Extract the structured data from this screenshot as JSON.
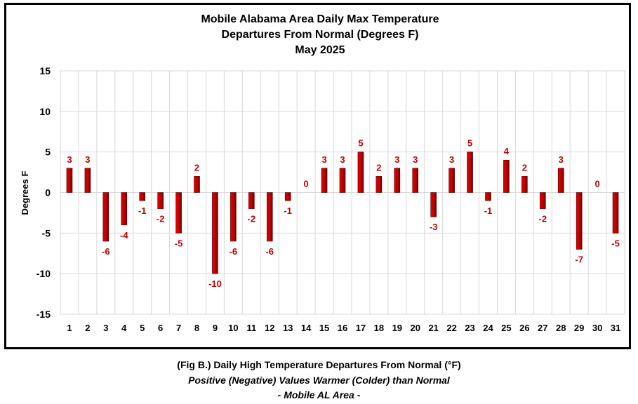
{
  "chart_data": {
    "type": "bar",
    "title": [
      "Mobile Alabama Area Daily Max Temperature",
      "Departures From Normal (Degrees F)",
      "May 2025"
    ],
    "xlabel": "",
    "ylabel": "Degrees F",
    "ylim": [
      -15,
      15
    ],
    "yticks": [
      15,
      10,
      5,
      0,
      -5,
      -10,
      -15
    ],
    "grid": true,
    "legend": "none",
    "colors": {
      "bar": "#c00000",
      "bar_dark": "#7a0000",
      "label": "#c00000",
      "grid": "#d9d9d9"
    },
    "categories": [
      "1",
      "2",
      "3",
      "4",
      "5",
      "6",
      "7",
      "8",
      "9",
      "10",
      "11",
      "12",
      "13",
      "14",
      "15",
      "16",
      "17",
      "18",
      "19",
      "20",
      "21",
      "22",
      "23",
      "24",
      "25",
      "26",
      "27",
      "28",
      "29",
      "30",
      "31"
    ],
    "values": [
      3,
      3,
      -6,
      -4,
      -1,
      -2,
      -5,
      2,
      -10,
      -6,
      -2,
      -6,
      -1,
      0,
      3,
      3,
      5,
      2,
      3,
      3,
      -3,
      3,
      5,
      -1,
      4,
      2,
      -2,
      3,
      -7,
      0,
      -5
    ]
  },
  "caption": {
    "line1": "(Fig B.) Daily High Temperature Departures From Normal (°F)",
    "line2": "Positive (Negative) Values Warmer (Colder) than Normal",
    "line3": "- Mobile AL Area -"
  }
}
